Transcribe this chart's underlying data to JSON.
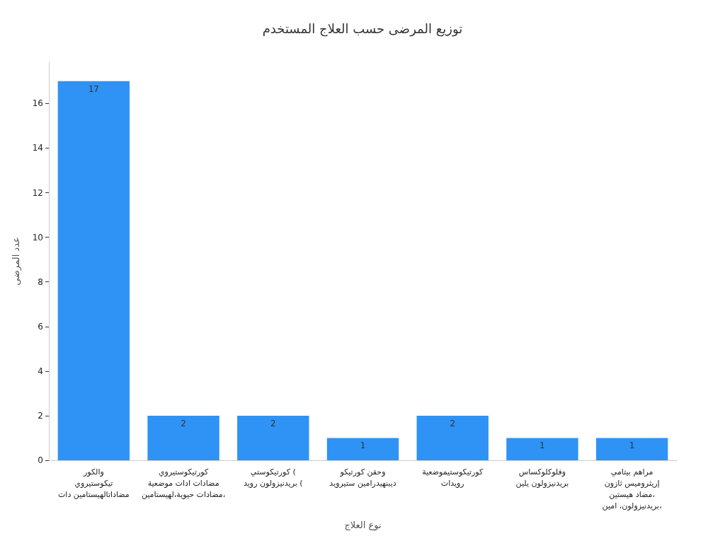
{
  "chart_data": {
    "type": "bar",
    "title": "توزيع المرضى حسب العلاج المستخدم",
    "xlabel": "نوع العلاج",
    "ylabel": "عدد المرضى",
    "categories": [
      "والكور\nتيكوستيروي\nمضاداتالهيستامين دات",
      "كورتيكوستيروي\nمضادات ادات موضعية\nمضادات حيوية،لهيستامين،",
      "كورتيكوستي (\nبريدنيزولون رويد (",
      "وحقن كورتيكو\nديبنهيدرامين ستيرويد",
      "كورتيكوستيموضعية\nرويدات",
      "وفلوكلوكساس\nبريدنيزولون يلين",
      "مراهم بيتامي\nإريثروميس ثازون\nمضاد هيستين،\nبريدنيزولون، امين،"
    ],
    "values": [
      17,
      2,
      2,
      1,
      2,
      1,
      1
    ],
    "color": "#2e93f5",
    "data_labels": true,
    "ylim": [
      0,
      17.85
    ],
    "yticks": [
      0,
      2,
      4,
      6,
      8,
      10,
      12,
      14,
      16
    ],
    "grid": false
  }
}
